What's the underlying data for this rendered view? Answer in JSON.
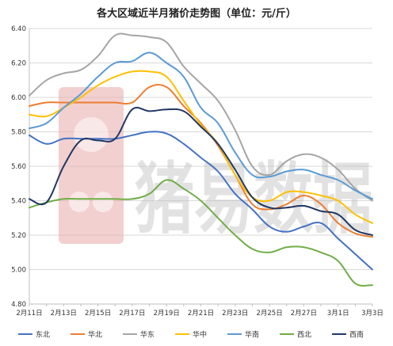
{
  "chart_data": {
    "type": "line",
    "title": "各大区域近半月猪价走势图（单位：元/斤）",
    "ylim": [
      4.8,
      6.4
    ],
    "yticks": [
      "4.80",
      "5.00",
      "5.20",
      "5.40",
      "5.60",
      "5.80",
      "6.00",
      "6.20",
      "6.40"
    ],
    "x": [
      "2月11日",
      "2月12日",
      "2月13日",
      "2月14日",
      "2月15日",
      "2月16日",
      "2月17日",
      "2月18日",
      "2月19日",
      "2月20日",
      "2月21日",
      "2月22日",
      "2月23日",
      "2月24日",
      "2月25日",
      "2月26日",
      "2月27日",
      "2月28日",
      "3月1日",
      "3月2日",
      "3月3日"
    ],
    "xtick_labels": [
      "2月11日",
      "2月13日",
      "2月15日",
      "2月17日",
      "2月19日",
      "2月21日",
      "2月23日",
      "2月25日",
      "2月27日",
      "3月1日",
      "3月3日"
    ],
    "grid": true,
    "legend_position": "bottom",
    "series": [
      {
        "name": "东北",
        "color": "#4472C4",
        "values": [
          5.78,
          5.73,
          5.76,
          5.76,
          5.76,
          5.76,
          5.78,
          5.8,
          5.79,
          5.73,
          5.65,
          5.57,
          5.44,
          5.35,
          5.25,
          5.22,
          5.25,
          5.27,
          5.18,
          5.09,
          5.0
        ]
      },
      {
        "name": "华北",
        "color": "#ED7D31",
        "values": [
          5.95,
          5.97,
          5.97,
          5.97,
          5.97,
          5.97,
          5.97,
          6.06,
          6.06,
          5.95,
          5.85,
          5.72,
          5.55,
          5.38,
          5.35,
          5.38,
          5.43,
          5.38,
          5.27,
          5.21,
          5.19
        ]
      },
      {
        "name": "华东",
        "color": "#A5A5A5",
        "values": [
          6.01,
          6.1,
          6.14,
          6.16,
          6.24,
          6.36,
          6.36,
          6.35,
          6.32,
          6.18,
          6.08,
          5.98,
          5.81,
          5.6,
          5.55,
          5.63,
          5.67,
          5.65,
          5.58,
          5.47,
          5.4
        ]
      },
      {
        "name": "华中",
        "color": "#FFC000",
        "values": [
          5.9,
          5.89,
          5.94,
          6.0,
          6.07,
          6.12,
          6.15,
          6.15,
          6.12,
          5.98,
          5.84,
          5.73,
          5.55,
          5.42,
          5.4,
          5.45,
          5.45,
          5.43,
          5.4,
          5.32,
          5.27
        ]
      },
      {
        "name": "华南",
        "color": "#5B9BD5",
        "values": [
          5.82,
          5.85,
          5.94,
          6.02,
          6.12,
          6.2,
          6.21,
          6.26,
          6.2,
          6.12,
          5.94,
          5.85,
          5.68,
          5.55,
          5.54,
          5.57,
          5.58,
          5.55,
          5.52,
          5.46,
          5.41
        ]
      },
      {
        "name": "西北",
        "color": "#70AD47",
        "values": [
          5.36,
          5.39,
          5.41,
          5.41,
          5.41,
          5.41,
          5.41,
          5.44,
          5.52,
          5.47,
          5.4,
          5.3,
          5.2,
          5.12,
          5.1,
          5.13,
          5.13,
          5.1,
          5.05,
          4.92,
          4.91
        ]
      },
      {
        "name": "西南",
        "color": "#203864",
        "values": [
          5.41,
          5.39,
          5.6,
          5.75,
          5.75,
          5.76,
          5.93,
          5.92,
          5.93,
          5.92,
          5.83,
          5.73,
          5.58,
          5.42,
          5.36,
          5.36,
          5.37,
          5.34,
          5.32,
          5.23,
          5.2
        ]
      }
    ]
  },
  "watermark": {
    "text": "猪易数据",
    "color": "#E8A9A9",
    "text_color": "#BFBFBF"
  }
}
